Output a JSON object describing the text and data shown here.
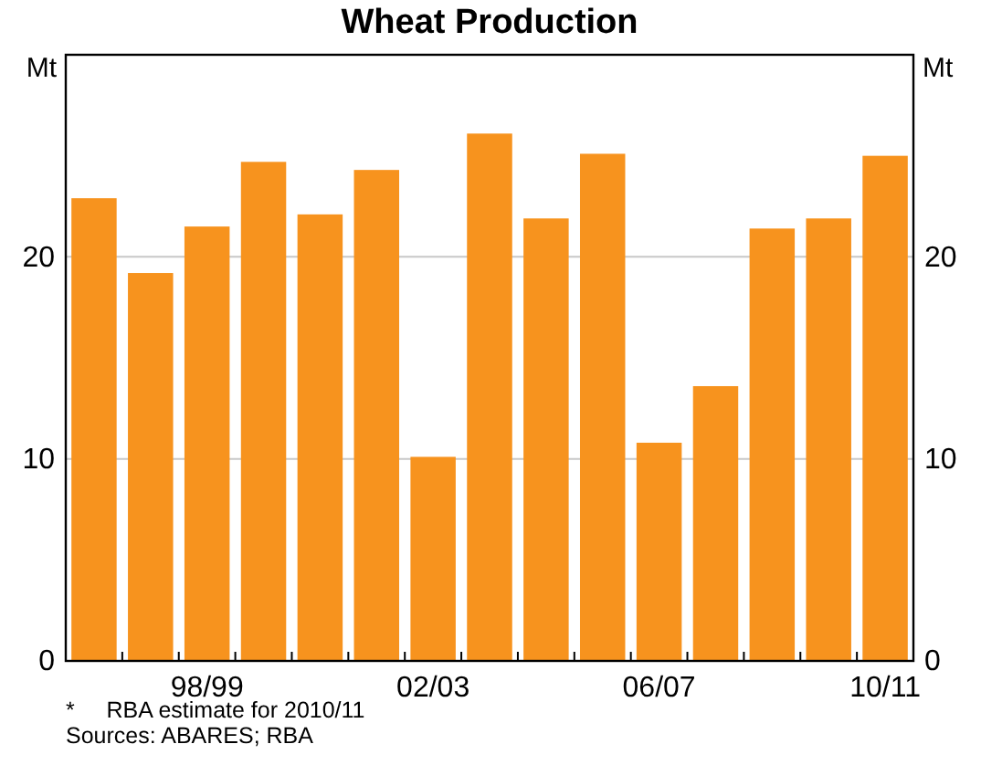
{
  "chart_data": {
    "type": "bar",
    "title": "Wheat Production",
    "categories": [
      null,
      null,
      "98/99",
      null,
      null,
      null,
      "02/03",
      null,
      null,
      null,
      "06/07",
      null,
      null,
      null,
      "10/11"
    ],
    "values": [
      22.9,
      19.2,
      21.5,
      24.7,
      22.1,
      24.3,
      10.1,
      26.1,
      21.9,
      25.1,
      10.8,
      13.6,
      21.4,
      21.9,
      25.0
    ],
    "color": "#f7931e",
    "ylabel": "Mt",
    "y2label": "Mt",
    "ylim": [
      0,
      30
    ],
    "yticks": [
      0,
      10,
      20
    ],
    "y2lim": [
      0,
      30
    ],
    "y2ticks": [
      0,
      10,
      20
    ],
    "grid": "y",
    "annotations": [
      "*     RBA estimate for 2010/11",
      "Sources: ABARES; RBA"
    ]
  }
}
